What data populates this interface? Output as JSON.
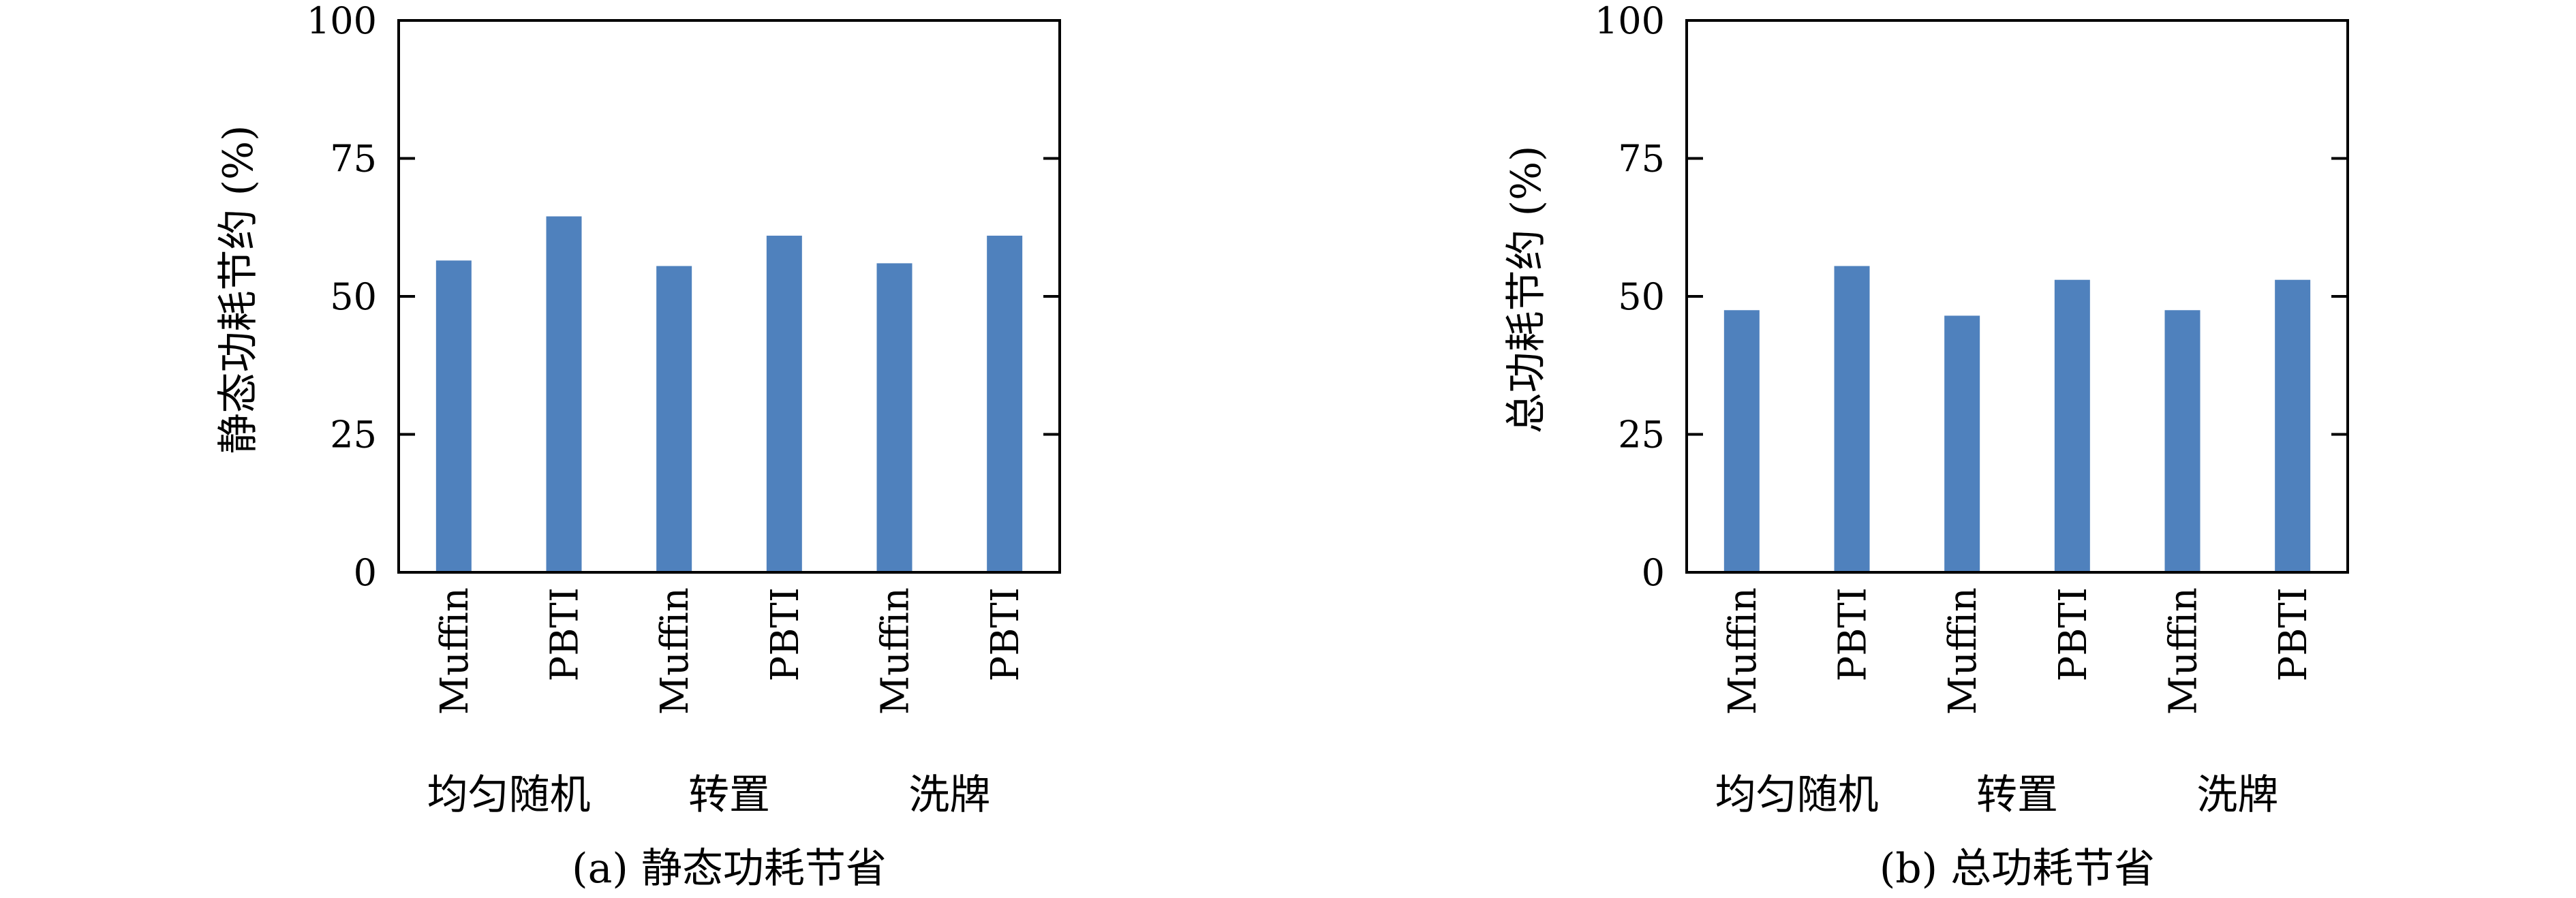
{
  "chart_data": [
    {
      "type": "bar",
      "caption": "(a) 静态功耗节省",
      "ylabel": "静态功耗节约 (%)",
      "xlabel": "",
      "ylim": [
        0,
        100
      ],
      "yticks": [
        "0",
        "25",
        "50",
        "75",
        "100"
      ],
      "categories": [
        "Muffin",
        "PBTI",
        "Muffin",
        "PBTI",
        "Muffin",
        "PBTI"
      ],
      "groups": [
        "均匀随机",
        "转置",
        "洗牌"
      ],
      "values": [
        56.5,
        64.5,
        55.5,
        61,
        56,
        61
      ],
      "grid": false,
      "legend": "none",
      "bar_color": "#4f81bd"
    },
    {
      "type": "bar",
      "caption": "(b) 总功耗节省",
      "ylabel": "总功耗节约 (%)",
      "xlabel": "",
      "ylim": [
        0,
        100
      ],
      "yticks": [
        "0",
        "25",
        "50",
        "75",
        "100"
      ],
      "categories": [
        "Muffin",
        "PBTI",
        "Muffin",
        "PBTI",
        "Muffin",
        "PBTI"
      ],
      "groups": [
        "均匀随机",
        "转置",
        "洗牌"
      ],
      "values": [
        47.5,
        55.5,
        46.5,
        53,
        47.5,
        53
      ],
      "grid": false,
      "legend": "none",
      "bar_color": "#4f81bd"
    }
  ]
}
